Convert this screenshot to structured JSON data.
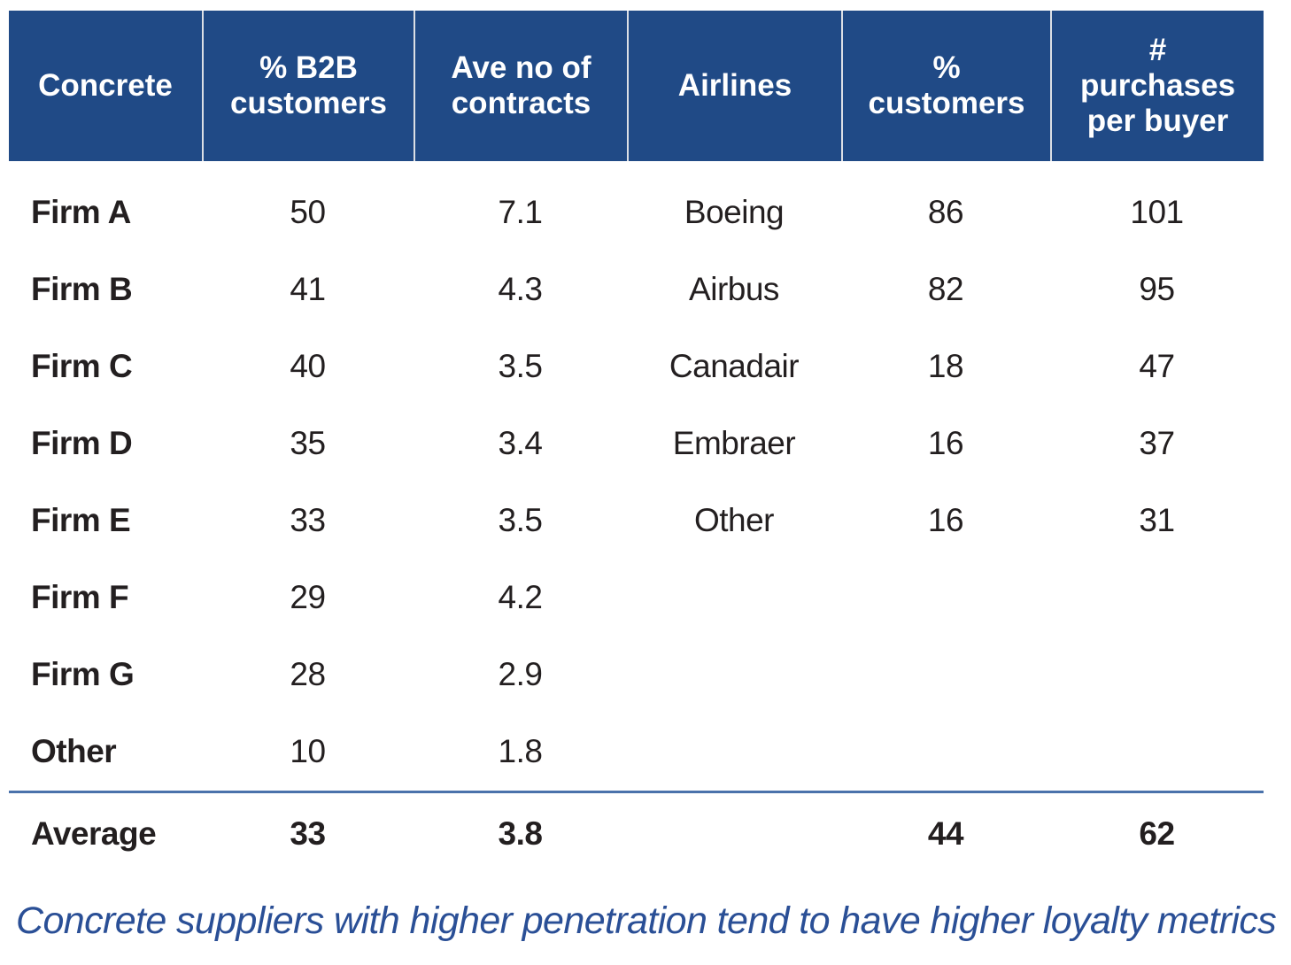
{
  "colors": {
    "header_bg": "#204a86",
    "header_text": "#ffffff",
    "header_separator": "#dcdfe5",
    "body_text": "#231f20",
    "divider_line": "#4a72ab",
    "caption_text": "#2a4f96"
  },
  "table": {
    "headers": [
      "Concrete",
      "% B2B customers",
      "Ave no of contracts",
      "Airlines",
      "% customers",
      "# purchases per buyer"
    ],
    "rows": [
      {
        "concrete": "Firm A",
        "pct_b2b": "50",
        "contracts": "7.1",
        "airline": "Boeing",
        "pct_cust": "86",
        "purchases": "101"
      },
      {
        "concrete": "Firm B",
        "pct_b2b": "41",
        "contracts": "4.3",
        "airline": "Airbus",
        "pct_cust": "82",
        "purchases": "95"
      },
      {
        "concrete": "Firm C",
        "pct_b2b": "40",
        "contracts": "3.5",
        "airline": "Canadair",
        "pct_cust": "18",
        "purchases": "47"
      },
      {
        "concrete": "Firm D",
        "pct_b2b": "35",
        "contracts": "3.4",
        "airline": "Embraer",
        "pct_cust": "16",
        "purchases": "37"
      },
      {
        "concrete": "Firm E",
        "pct_b2b": "33",
        "contracts": "3.5",
        "airline": "Other",
        "pct_cust": "16",
        "purchases": "31"
      },
      {
        "concrete": "Firm F",
        "pct_b2b": "29",
        "contracts": "4.2",
        "airline": "",
        "pct_cust": "",
        "purchases": ""
      },
      {
        "concrete": "Firm G",
        "pct_b2b": "28",
        "contracts": "2.9",
        "airline": "",
        "pct_cust": "",
        "purchases": ""
      },
      {
        "concrete": "Other",
        "pct_b2b": "10",
        "contracts": "1.8",
        "airline": "",
        "pct_cust": "",
        "purchases": ""
      }
    ],
    "average": {
      "label": "Average",
      "pct_b2b": "33",
      "contracts": "3.8",
      "airline": "",
      "pct_cust": "44",
      "purchases": "62"
    }
  },
  "caption": "Concrete suppliers with higher penetration tend to have higher loyalty metrics",
  "chart_data": {
    "type": "table",
    "title": "",
    "columns": [
      "Concrete",
      "% B2B customers",
      "Ave no of contracts",
      "Airlines",
      "% customers",
      "# purchases per buyer"
    ],
    "rows": [
      [
        "Firm A",
        50,
        7.1,
        "Boeing",
        86,
        101
      ],
      [
        "Firm B",
        41,
        4.3,
        "Airbus",
        82,
        95
      ],
      [
        "Firm C",
        40,
        3.5,
        "Canadair",
        18,
        47
      ],
      [
        "Firm D",
        35,
        3.4,
        "Embraer",
        16,
        37
      ],
      [
        "Firm E",
        33,
        3.5,
        "Other",
        16,
        31
      ],
      [
        "Firm F",
        29,
        4.2,
        null,
        null,
        null
      ],
      [
        "Firm G",
        28,
        2.9,
        null,
        null,
        null
      ],
      [
        "Other",
        10,
        1.8,
        null,
        null,
        null
      ]
    ],
    "summary_row": [
      "Average",
      33,
      3.8,
      null,
      44,
      62
    ],
    "annotations": [
      "Concrete suppliers with higher penetration tend to have higher loyalty metrics"
    ]
  }
}
